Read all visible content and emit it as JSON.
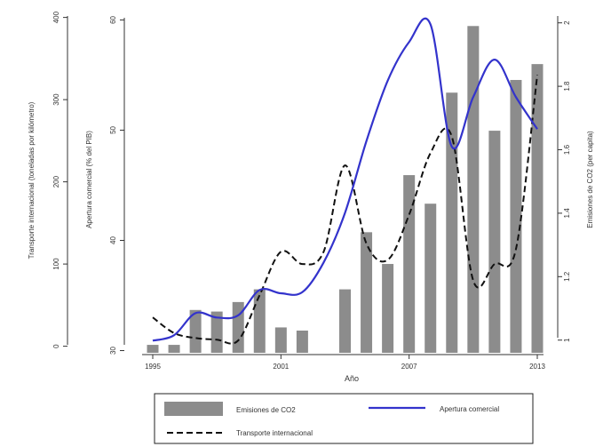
{
  "chart_data": {
    "type": "bar+line",
    "x": [
      1995,
      1996,
      1997,
      1998,
      1999,
      2000,
      2001,
      2002,
      2003,
      2004,
      2005,
      2006,
      2007,
      2008,
      2009,
      2010,
      2011,
      2012,
      2013
    ],
    "x_ticks": [
      "1995",
      "2001",
      "2007",
      "2013"
    ],
    "x_tick_values": [
      1995,
      2001,
      2007,
      2013
    ],
    "xlabel": "Año",
    "axes": {
      "left_outer": {
        "label": "Transporte internacional (toneladas por kilómetro)",
        "ticks": [
          "0",
          "100",
          "200",
          "300",
          "400"
        ],
        "tick_values": [
          0,
          100,
          200,
          300,
          400
        ],
        "range": [
          -8,
          405
        ]
      },
      "left_inner": {
        "label": "Apertura comercial (% del PIB)",
        "ticks": [
          "30",
          "40",
          "50",
          "60"
        ],
        "tick_values": [
          30,
          40,
          50,
          60
        ],
        "range": [
          29.8,
          60.6
        ]
      },
      "right": {
        "label": "Emisiones de CO2 (per capita)",
        "ticks": [
          "1",
          "1.2",
          "1.4",
          "1.6",
          "1.8",
          "2"
        ],
        "tick_values": [
          1.0,
          1.2,
          1.4,
          1.6,
          1.8,
          2.0
        ],
        "range": [
          0.96,
          2.03
        ]
      }
    },
    "series": [
      {
        "name": "Emisiones de CO2",
        "type": "bar",
        "axis": "right",
        "color": "#8c8c8c",
        "values": [
          0.985,
          0.985,
          1.095,
          1.09,
          1.12,
          1.16,
          1.04,
          1.03,
          null,
          1.16,
          1.34,
          1.24,
          1.52,
          1.43,
          1.78,
          1.99,
          1.66,
          1.82,
          1.87
        ]
      },
      {
        "name": "Apertura comercial",
        "type": "line",
        "axis": "left_inner",
        "color": "#3333cc",
        "values": [
          30.9,
          31.4,
          33.4,
          33.0,
          33.2,
          35.5,
          35.2,
          35.3,
          38.0,
          42.5,
          49.0,
          54.5,
          58.0,
          59.6,
          48.5,
          53.0,
          56.4,
          53.0,
          50.1
        ]
      },
      {
        "name": "Transporte internacional",
        "type": "line",
        "dash": true,
        "axis": "left_outer",
        "color": "#111111",
        "values": [
          35,
          16,
          10,
          8,
          7,
          62,
          115,
          100,
          115,
          220,
          125,
          105,
          160,
          235,
          255,
          80,
          100,
          118,
          330
        ]
      }
    ],
    "legend": {
      "position": "bottom",
      "items": [
        "Emisiones de CO2",
        "Apertura comercial",
        "Transporte internacional"
      ]
    },
    "grid": false
  }
}
